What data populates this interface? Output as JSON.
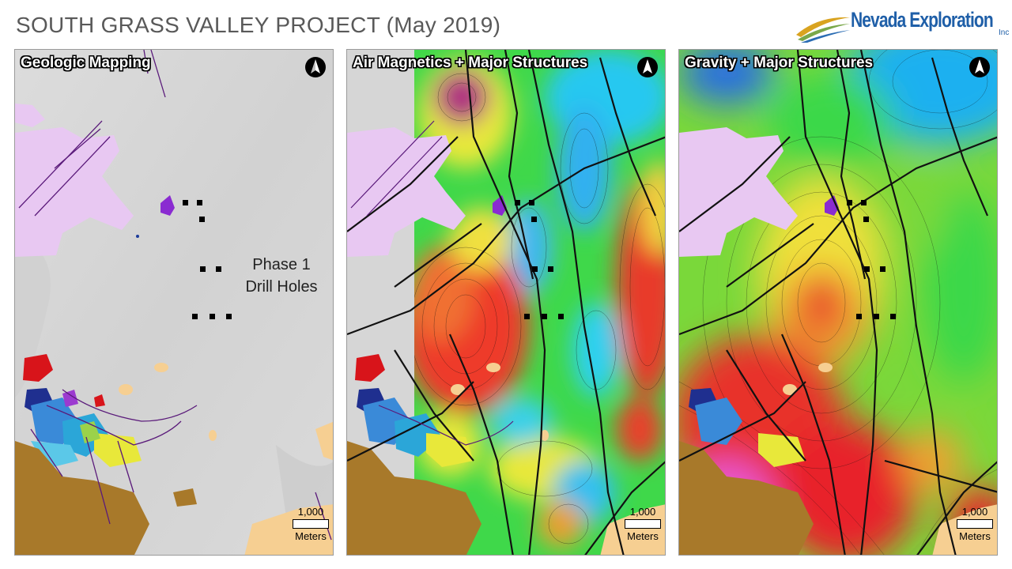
{
  "slide": {
    "title": "SOUTH GRASS VALLEY PROJECT (May 2019)"
  },
  "logo": {
    "name": "Nevada Exploration",
    "suffix": "Inc"
  },
  "panels": [
    {
      "title": "Geologic Mapping",
      "scale_value": "1,000",
      "scale_unit": "Meters"
    },
    {
      "title": "Air Magnetics + Major Structures",
      "scale_value": "1,000",
      "scale_unit": "Meters"
    },
    {
      "title": "Gravity + Major Structures",
      "scale_value": "1,000",
      "scale_unit": "Meters"
    }
  ],
  "annotation": {
    "line1": "Phase 1",
    "line2": "Drill Holes"
  },
  "colors": {
    "background_grey": "#d7d7d7",
    "lavender_unit": "#e8c8f2",
    "brown_unit": "#a8792a",
    "tan_unit": "#f6cf92",
    "fault_purple": "#5a1a7a",
    "structure_black": "#111111"
  }
}
